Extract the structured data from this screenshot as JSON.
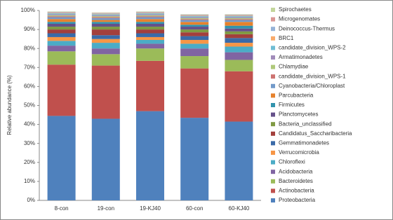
{
  "chart_data": {
    "type": "stacked-bar",
    "y_label": "Relative abundance (%)",
    "categories": [
      "8-con",
      "19-con",
      "19-KJ40",
      "60-con",
      "60-KJ40"
    ],
    "ylim": [
      0,
      100
    ],
    "yticks": [
      {
        "value": 0,
        "label": "0%"
      },
      {
        "value": 10,
        "label": "10%"
      },
      {
        "value": 20,
        "label": "20%"
      },
      {
        "value": 30,
        "label": "30%"
      },
      {
        "value": 40,
        "label": "40%"
      },
      {
        "value": 50,
        "label": "50%"
      },
      {
        "value": 60,
        "label": "60%"
      },
      {
        "value": 70,
        "label": "70%"
      },
      {
        "value": 80,
        "label": "80%"
      },
      {
        "value": 90,
        "label": "90%"
      },
      {
        "value": 100,
        "label": "100%"
      }
    ],
    "series": [
      {
        "name": "Proteobacteria",
        "color": "#4f81bd",
        "values": [
          44.5,
          43,
          47,
          43.5,
          41.5
        ]
      },
      {
        "name": "Actinobacteria",
        "color": "#c0504d",
        "values": [
          27,
          28,
          26.5,
          26,
          26.5
        ]
      },
      {
        "name": "Bacteroidetes",
        "color": "#9bbb59",
        "values": [
          7,
          6,
          6.5,
          6.5,
          6
        ]
      },
      {
        "name": "Acidobacteria",
        "color": "#8064a2",
        "values": [
          3,
          3,
          2.5,
          4,
          4
        ]
      },
      {
        "name": "Chloroflexi",
        "color": "#4bacc6",
        "values": [
          2.5,
          3,
          2,
          2.5,
          3
        ]
      },
      {
        "name": "Verrucomicrobia",
        "color": "#f79646",
        "values": [
          2,
          2,
          1.5,
          2,
          2
        ]
      },
      {
        "name": "Gemmatimonadetes",
        "color": "#3a6aa8",
        "values": [
          2,
          2,
          2,
          2,
          2.5
        ]
      },
      {
        "name": "Candidatus_Saccharibacteria",
        "color": "#a33f3c",
        "values": [
          2,
          3,
          2,
          2,
          2
        ]
      },
      {
        "name": "Bacteria_unclassified",
        "color": "#7f9a43",
        "values": [
          1.5,
          1.5,
          1.5,
          1.5,
          1.5
        ]
      },
      {
        "name": "Planctomycetes",
        "color": "#65508a",
        "values": [
          1.5,
          1.5,
          1.5,
          1.5,
          1.5
        ]
      },
      {
        "name": "Firmicutes",
        "color": "#3293ad",
        "values": [
          1,
          1,
          1,
          1,
          1.5
        ]
      },
      {
        "name": "Parcubacteria",
        "color": "#e6822d",
        "values": [
          1.5,
          1,
          1.5,
          1.5,
          2
        ]
      },
      {
        "name": "Cyanobacteria/Chloroplast",
        "color": "#729aca",
        "values": [
          1,
          1,
          1,
          1,
          1
        ]
      },
      {
        "name": "candidate_division_WPS-1",
        "color": "#cd7371",
        "values": [
          0.5,
          0.5,
          0.5,
          0.5,
          0.5
        ]
      },
      {
        "name": "Chlamydiae",
        "color": "#afc97a",
        "values": [
          0.5,
          0.5,
          0.5,
          0.5,
          0.5
        ]
      },
      {
        "name": "Armatimonadetes",
        "color": "#a18cba",
        "values": [
          0.5,
          0.5,
          0.5,
          0.5,
          0.5
        ]
      },
      {
        "name": "candidate_division_WPS-2",
        "color": "#6fbdd4",
        "values": [
          0.5,
          0.5,
          0.5,
          0.5,
          0.5
        ]
      },
      {
        "name": "BRC1",
        "color": "#f9ab6b",
        "values": [
          0.3,
          0.3,
          0.3,
          0.3,
          0.3
        ]
      },
      {
        "name": "Deinococcus-Thermus",
        "color": "#95b3d7",
        "values": [
          0.3,
          0.3,
          0.3,
          0.3,
          0.3
        ]
      },
      {
        "name": "Microgenomates",
        "color": "#d99694",
        "values": [
          0.2,
          0.2,
          0.2,
          0.2,
          0.2
        ]
      },
      {
        "name": "Spirochaetes",
        "color": "#c3d69b",
        "values": [
          0.2,
          0.2,
          0.2,
          0.2,
          0.2
        ]
      }
    ]
  }
}
